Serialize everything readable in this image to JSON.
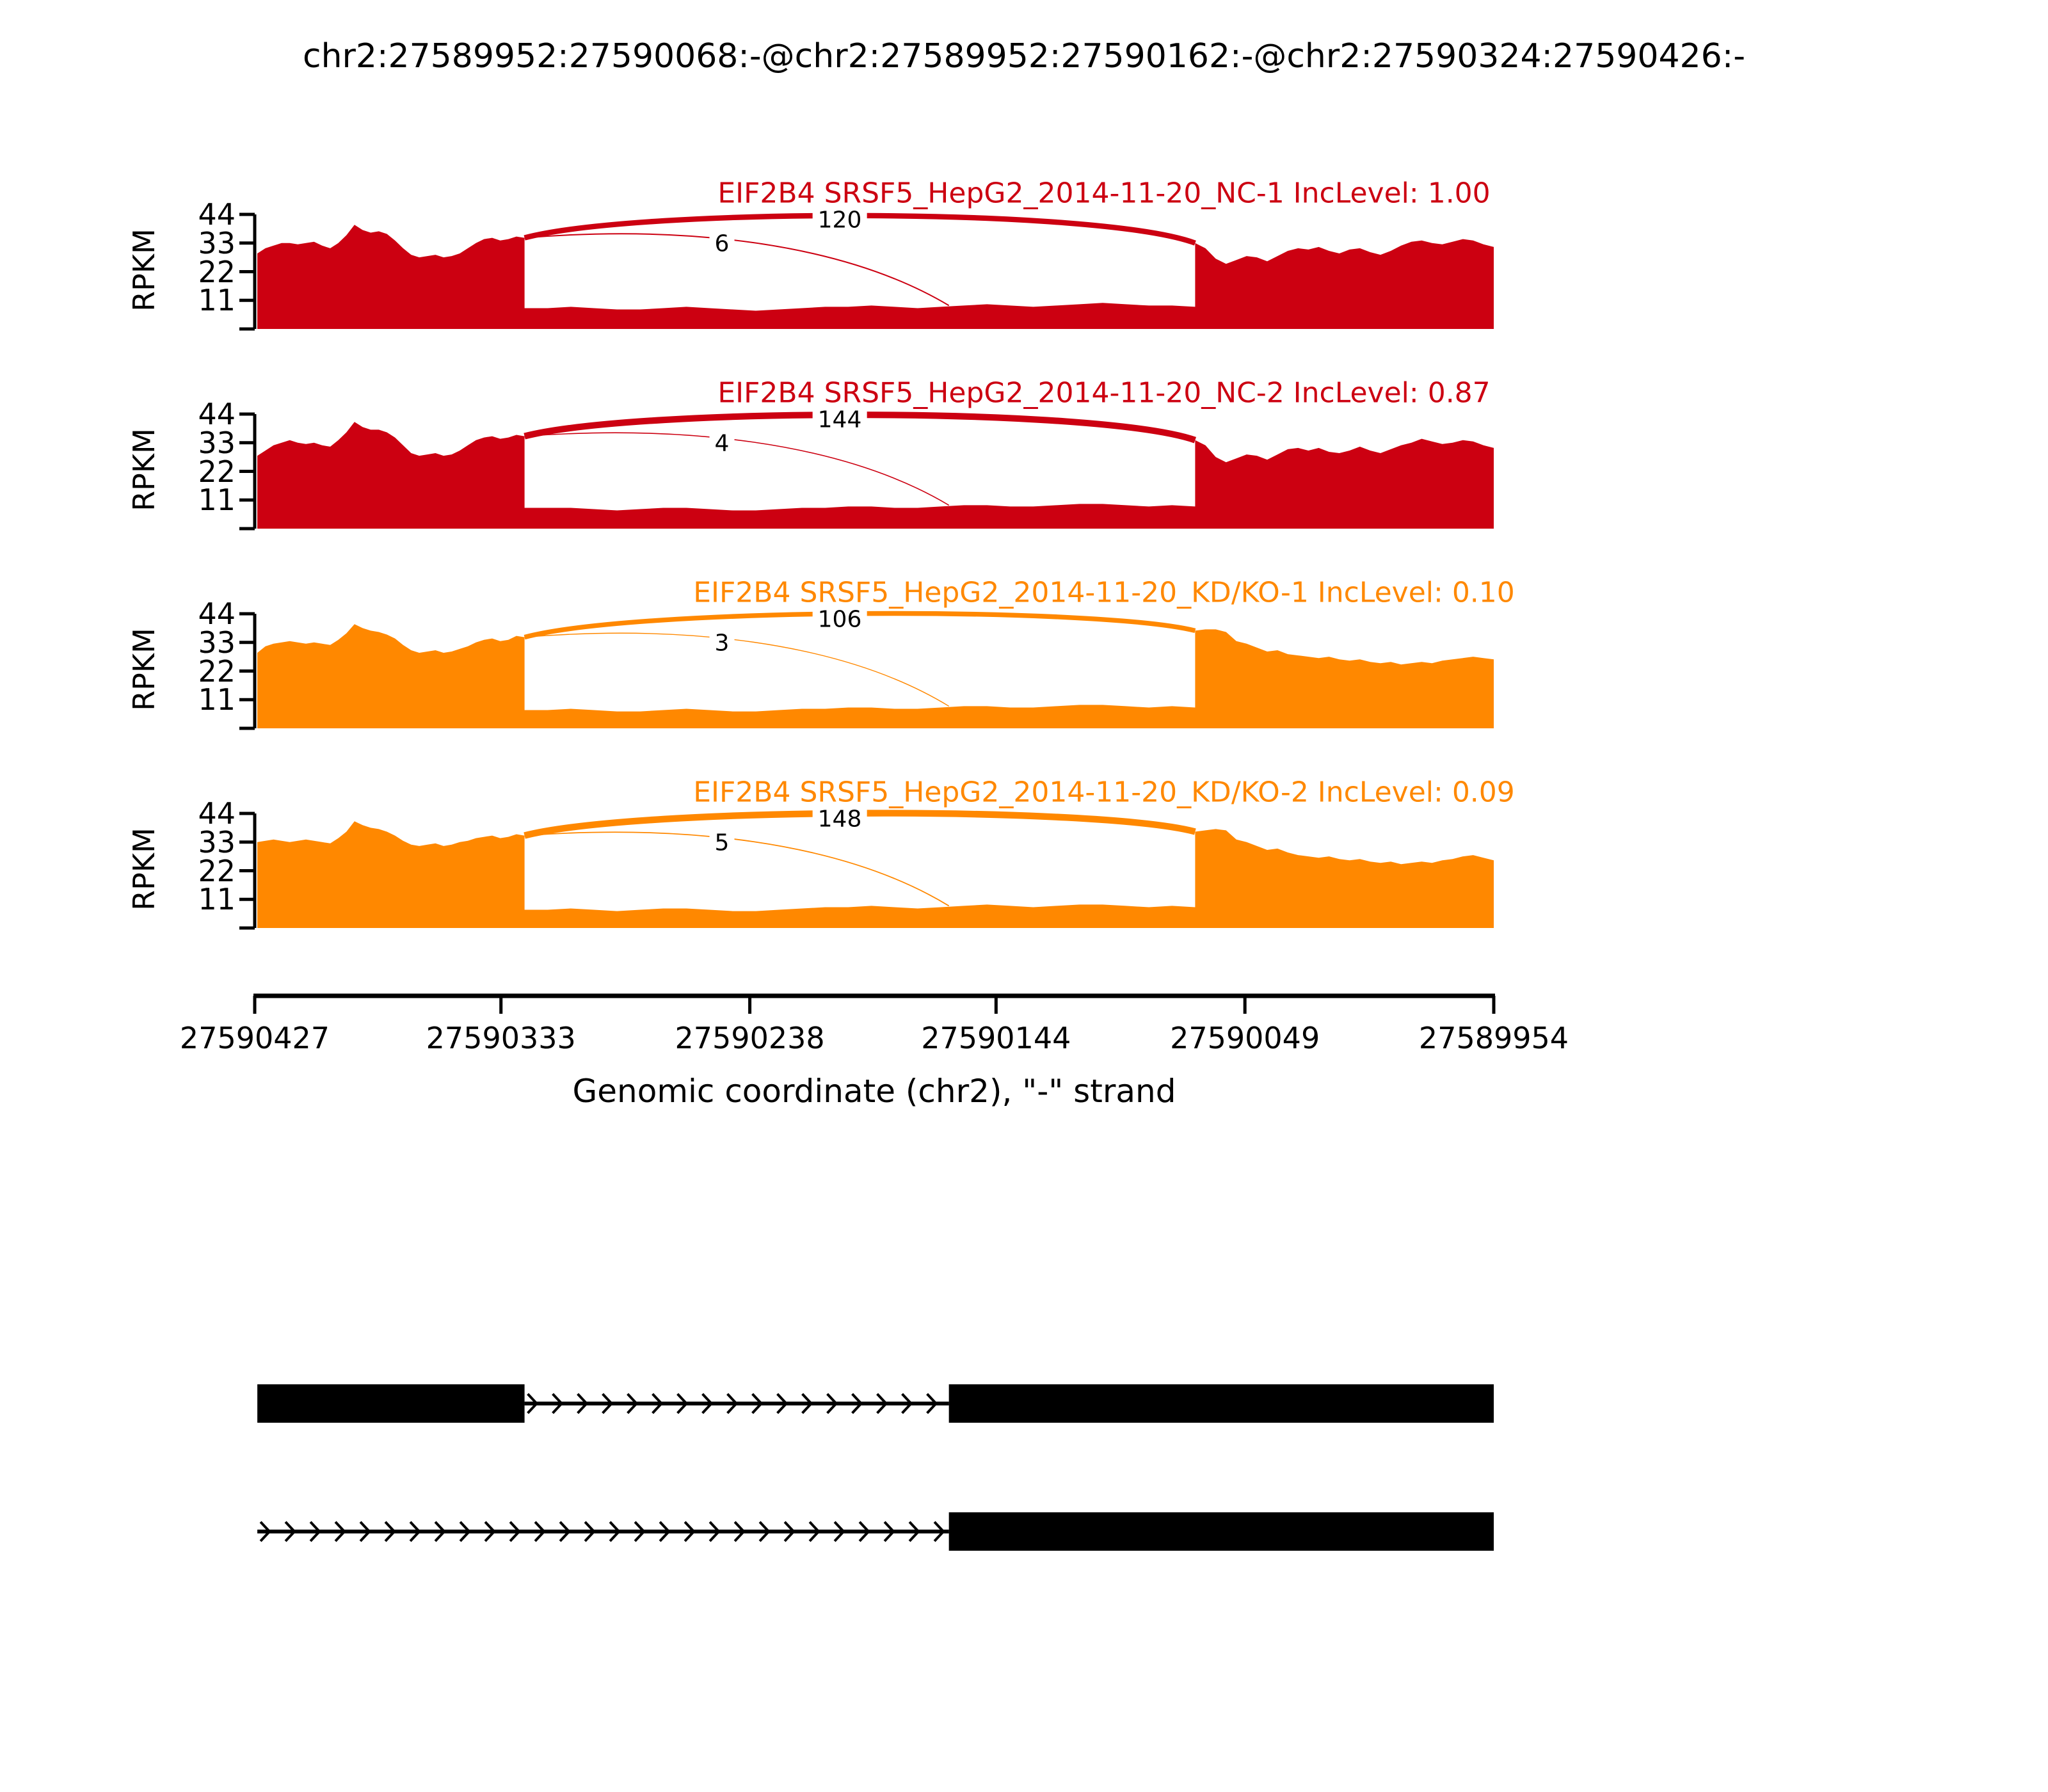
{
  "title": "chr2:27589952:27590068:-@chr2:27589952:27590162:-@chr2:27590324:27590426:-",
  "axis": {
    "ylabel": "RPKM",
    "yticks": [
      "44",
      "33",
      "22",
      "11"
    ],
    "xticks": [
      "27590427",
      "27590333",
      "27590238",
      "27590144",
      "27590049",
      "27589954"
    ],
    "xlabel": "Genomic coordinate (chr2), \"-\" strand"
  },
  "chart_data": {
    "type": "area",
    "title": "chr2:27589952:27590068:-@chr2:27589952:27590162:-@chr2:27590324:27590426:-",
    "ylabel": "RPKM",
    "ylim": [
      0,
      44
    ],
    "ytick_values": [
      11,
      22,
      33,
      44
    ],
    "x_domain": {
      "left_coord": 27590427,
      "right_coord": 27589954
    },
    "regions": {
      "flank_exon": [
        27590426,
        27590324
      ],
      "long_exon_end": 27590162,
      "short_exon_end": 27590068
    },
    "tracks": [
      {
        "title": "EIF2B4 SRSF5_HepG2_2014-11-20_NC-1 IncLevel: 1.00",
        "color": "#CC0011",
        "inc_level": "1.00",
        "junctions": [
          {
            "kind": "skip",
            "count": 120,
            "from": 27590324,
            "to": 27590068
          },
          {
            "kind": "incl",
            "count": 6,
            "from": 27590324,
            "to": 27590162
          }
        ],
        "coverage_left": [
          29,
          31,
          32,
          33,
          33,
          32.5,
          33,
          33.5,
          32,
          31,
          33,
          36,
          40,
          38,
          37,
          37.5,
          36.5,
          34,
          31,
          28.5,
          27.5,
          28,
          28.5,
          27.5,
          28,
          29,
          31,
          33,
          34.5,
          35,
          34,
          34.5,
          35.5,
          35
        ],
        "coverage_mid": [
          8,
          8,
          8.5,
          8,
          7.5,
          7.5,
          8,
          8.5,
          8,
          7.5,
          7,
          7.5,
          8,
          8.5,
          8.5,
          9,
          8.5,
          8,
          8.5,
          9,
          9.5,
          9,
          8.5,
          9,
          9.5,
          10,
          9.5,
          9,
          9,
          8.5
        ],
        "coverage_right": [
          33,
          31,
          27,
          25,
          26.5,
          28,
          27.5,
          26,
          28,
          30,
          31,
          30.5,
          31.5,
          30,
          29,
          30.5,
          31,
          29.5,
          28.5,
          30,
          32,
          33.5,
          34,
          33,
          32.5,
          33.5,
          34.5,
          34,
          32.5,
          31.5
        ]
      },
      {
        "title": "EIF2B4 SRSF5_HepG2_2014-11-20_NC-2 IncLevel: 0.87",
        "color": "#CC0011",
        "inc_level": "0.87",
        "junctions": [
          {
            "kind": "skip",
            "count": 144,
            "from": 27590324,
            "to": 27590068
          },
          {
            "kind": "incl",
            "count": 4,
            "from": 27590324,
            "to": 27590162
          }
        ],
        "coverage_left": [
          28,
          30,
          32,
          33,
          34,
          33,
          32.5,
          33,
          32,
          31.5,
          34,
          37,
          41,
          39,
          38,
          38,
          37,
          35,
          32,
          29,
          28,
          28.5,
          29,
          28,
          28.5,
          30,
          32,
          34,
          35,
          35.5,
          34.5,
          35,
          36,
          35.5
        ],
        "coverage_mid": [
          8,
          8,
          8,
          7.5,
          7,
          7.5,
          8,
          8,
          7.5,
          7,
          7,
          7.5,
          8,
          8,
          8.5,
          8.5,
          8,
          8,
          8.5,
          9,
          9,
          8.5,
          8.5,
          9,
          9.5,
          9.5,
          9,
          8.5,
          9,
          8.5
        ],
        "coverage_right": [
          34,
          32,
          27.5,
          25.5,
          27,
          28.5,
          28,
          26.5,
          28.5,
          30.5,
          31,
          30,
          31,
          29.5,
          29,
          30,
          31.5,
          30,
          29,
          30.5,
          32,
          33,
          34.5,
          33.5,
          32.5,
          33,
          34,
          33.5,
          32,
          31
        ]
      },
      {
        "title": "EIF2B4 SRSF5_HepG2_2014-11-20_KD/KO-1 IncLevel: 0.10",
        "color": "#FF8800",
        "inc_level": "0.10",
        "junctions": [
          {
            "kind": "skip",
            "count": 106,
            "from": 27590324,
            "to": 27590068
          },
          {
            "kind": "incl",
            "count": 3,
            "from": 27590324,
            "to": 27590162
          }
        ],
        "coverage_left": [
          29,
          31.5,
          32.5,
          33,
          33.5,
          33,
          32.5,
          33,
          32.5,
          32,
          34,
          36.5,
          40,
          38.5,
          37.5,
          37,
          36,
          34.5,
          32,
          30,
          29,
          29.5,
          30,
          29,
          29.5,
          30.5,
          31.5,
          33,
          34,
          34.5,
          33.5,
          34,
          35.5,
          35
        ],
        "coverage_mid": [
          7,
          7,
          7.5,
          7,
          6.5,
          6.5,
          7,
          7.5,
          7,
          6.5,
          6.5,
          7,
          7.5,
          7.5,
          8,
          8,
          7.5,
          7.5,
          8,
          8.5,
          8.5,
          8,
          8,
          8.5,
          9,
          9,
          8.5,
          8,
          8.5,
          8
        ],
        "coverage_right": [
          37.5,
          38,
          38,
          37,
          33.5,
          32.5,
          31,
          29.5,
          30,
          28.5,
          28,
          27.5,
          27,
          27.5,
          26.5,
          26,
          26.5,
          25.5,
          25,
          25.5,
          24.5,
          25,
          25.5,
          25,
          26,
          26.5,
          27,
          27.5,
          27,
          26.5
        ]
      },
      {
        "title": "EIF2B4 SRSF5_HepG2_2014-11-20_KD/KO-2 IncLevel: 0.09",
        "color": "#FF8800",
        "inc_level": "0.09",
        "junctions": [
          {
            "kind": "skip",
            "count": 148,
            "from": 27590324,
            "to": 27590068
          },
          {
            "kind": "incl",
            "count": 5,
            "from": 27590324,
            "to": 27590162
          }
        ],
        "coverage_left": [
          33,
          33.5,
          34,
          33.5,
          33,
          33.5,
          34,
          33.5,
          33,
          32.5,
          34.5,
          37,
          41,
          39.5,
          38.5,
          38,
          37,
          35.5,
          33.5,
          32,
          31.5,
          32,
          32.5,
          31.5,
          32,
          33,
          33.5,
          34.5,
          35,
          35.5,
          34.5,
          35,
          36,
          35.5
        ],
        "coverage_mid": [
          7,
          7,
          7.5,
          7,
          6.5,
          7,
          7.5,
          7.5,
          7,
          6.5,
          6.5,
          7,
          7.5,
          8,
          8,
          8.5,
          8,
          7.5,
          8,
          8.5,
          9,
          8.5,
          8,
          8.5,
          9,
          9,
          8.5,
          8,
          8.5,
          8
        ],
        "coverage_right": [
          37,
          37.5,
          38,
          37.5,
          34,
          33,
          31.5,
          30,
          30.5,
          29,
          28,
          27.5,
          27,
          27.5,
          26.5,
          26,
          26.5,
          25.5,
          25,
          25.5,
          24.5,
          25,
          25.5,
          25,
          26,
          26.5,
          27.5,
          28,
          27,
          26
        ]
      }
    ],
    "gene_model": {
      "color": "#000000",
      "isoforms": [
        {
          "exons": [
            [
              27590426,
              27590324
            ],
            [
              27590162,
              27589954
            ]
          ],
          "intron": [
            27590324,
            27590162
          ]
        },
        {
          "exons": [
            [
              27590162,
              27589954
            ]
          ],
          "intron": [
            27590426,
            27590162
          ]
        }
      ]
    }
  }
}
